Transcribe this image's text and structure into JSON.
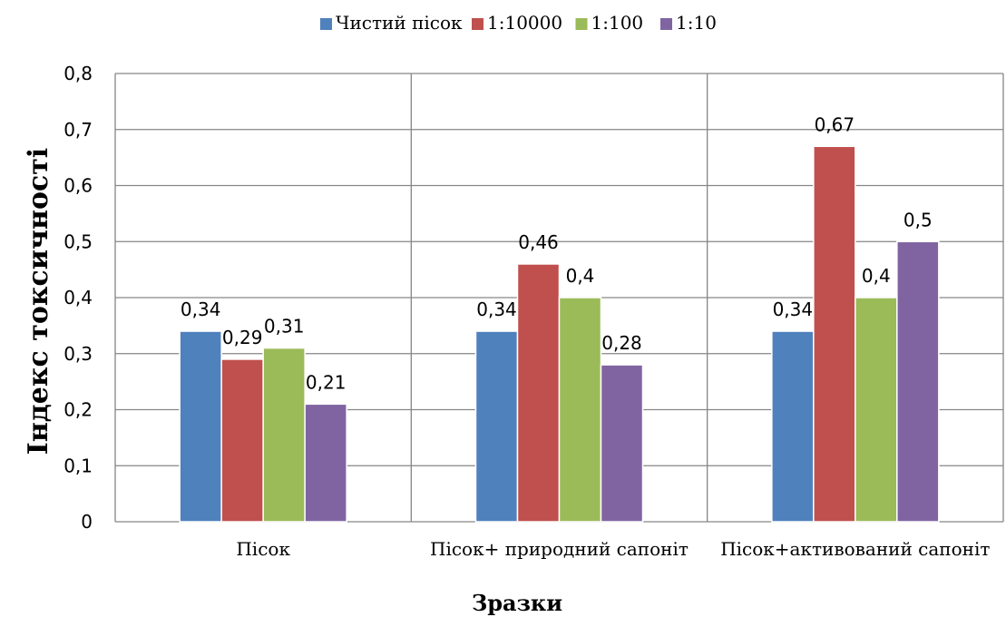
{
  "chart_data": {
    "type": "bar",
    "title": "",
    "xlabel": "Зразки",
    "ylabel": "Індекс токсичності",
    "categories": [
      "Пісок",
      "Пісок+ природний сапоніт",
      "Пісок+активований сапоніт"
    ],
    "ylim": [
      0,
      0.8
    ],
    "yticks": [
      "0",
      "0,1",
      "0,2",
      "0,3",
      "0,4",
      "0,5",
      "0,6",
      "0,7",
      "0,8"
    ],
    "grid": true,
    "legend_position": "top",
    "series": [
      {
        "name": "Чистий пісок",
        "color": "#4f81bd",
        "values": [
          0.34,
          0.34,
          0.34
        ],
        "labels": [
          "0,34",
          "0,34",
          "0,34"
        ]
      },
      {
        "name": "1:10000",
        "color": "#c0504d",
        "values": [
          0.29,
          0.46,
          0.67
        ],
        "labels": [
          "0,29",
          "0,46",
          "0,67"
        ]
      },
      {
        "name": "1:100",
        "color": "#9bbb59",
        "values": [
          0.31,
          0.4,
          0.4
        ],
        "labels": [
          "0,31",
          "0,4",
          "0,4"
        ]
      },
      {
        "name": "1:10",
        "color": "#8064a2",
        "values": [
          0.21,
          0.28,
          0.5
        ],
        "labels": [
          "0,21",
          "0,28",
          "0,5"
        ]
      }
    ]
  }
}
